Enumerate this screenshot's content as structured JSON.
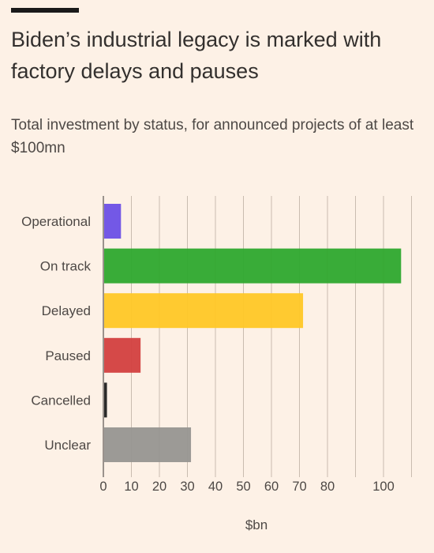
{
  "title": "Biden’s industrial legacy is marked with factory delays and pauses",
  "subtitle": "Total investment by status, for announced projects of at least $100mn",
  "chart_data": {
    "type": "bar",
    "orientation": "horizontal",
    "categories": [
      "Operational",
      "On track",
      "Delayed",
      "Paused",
      "Cancelled",
      "Unclear"
    ],
    "values": [
      6,
      106,
      71,
      13,
      1,
      31
    ],
    "colors": [
      "#6b4fe6",
      "#2ea82e",
      "#ffc726",
      "#d33f3f",
      "#1f1f1f",
      "#979591"
    ],
    "x_ticks": [
      0,
      10,
      20,
      30,
      40,
      50,
      60,
      70,
      80,
      100
    ],
    "xlim": [
      0,
      110
    ],
    "xlabel": "$bn",
    "grid": true
  }
}
